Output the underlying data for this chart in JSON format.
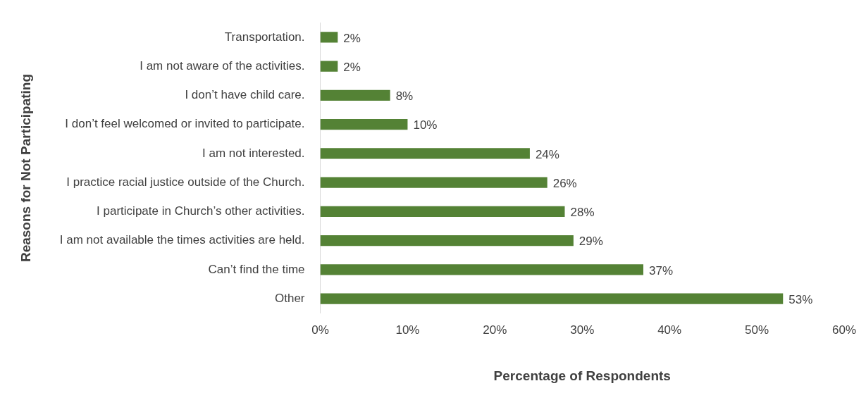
{
  "chart_data": {
    "type": "bar",
    "orientation": "horizontal",
    "xlabel": "Percentage of Respondents",
    "ylabel": "Reasons for Not Participating",
    "categories": [
      "Transportation.",
      "I am not aware of the activities.",
      "I don’t have child care.",
      "I don’t feel welcomed or invited to participate.",
      "I am not interested.",
      "I practice racial justice outside of the Church.",
      "I participate in Church’s other activities.",
      "I am not available the times activities are held.",
      "Can’t find the time",
      "Other"
    ],
    "values": [
      2,
      2,
      8,
      10,
      24,
      26,
      28,
      29,
      37,
      53
    ],
    "value_labels": [
      "2%",
      "2%",
      "8%",
      "10%",
      "24%",
      "26%",
      "28%",
      "29%",
      "37%",
      "53%"
    ],
    "color": "#548235",
    "xlim": [
      0,
      60
    ],
    "xticks": [
      {
        "value": 0,
        "label": "0%"
      },
      {
        "value": 10,
        "label": "10%"
      },
      {
        "value": 20,
        "label": "20%"
      },
      {
        "value": 30,
        "label": "30%"
      },
      {
        "value": 40,
        "label": "40%"
      },
      {
        "value": 50,
        "label": "50%"
      },
      {
        "value": 60,
        "label": "60%"
      }
    ],
    "grid": false,
    "legend": false
  }
}
